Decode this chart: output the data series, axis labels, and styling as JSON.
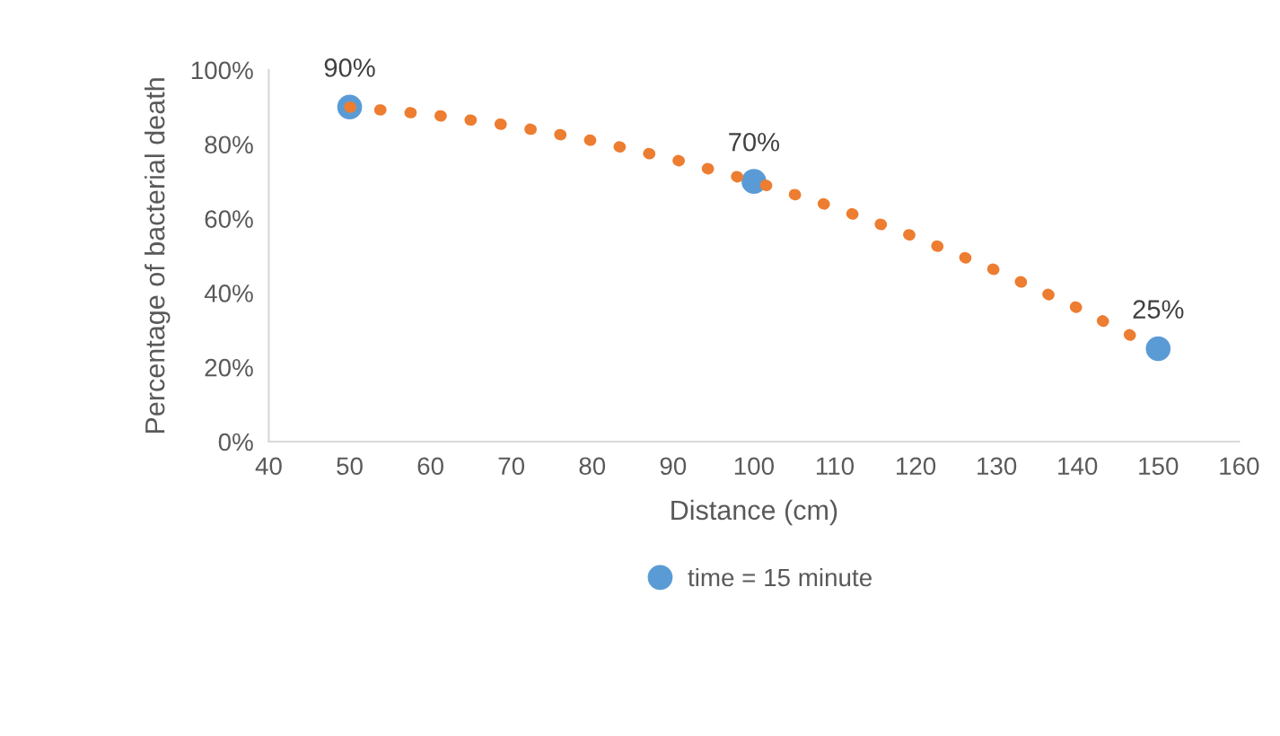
{
  "chart_data": {
    "type": "scatter",
    "xlabel": "Distance (cm)",
    "ylabel": "Percentage of bacterial death",
    "xlim": [
      40,
      160
    ],
    "xticks": [
      40,
      50,
      60,
      70,
      80,
      90,
      100,
      110,
      120,
      130,
      140,
      150,
      160
    ],
    "ylim": [
      0,
      100
    ],
    "yticks": [
      {
        "value": 0,
        "label": "0%"
      },
      {
        "value": 20,
        "label": "20%"
      },
      {
        "value": 40,
        "label": "40%"
      },
      {
        "value": 60,
        "label": "60%"
      },
      {
        "value": 80,
        "label": "80%"
      },
      {
        "value": 100,
        "label": "100%"
      }
    ],
    "grid": false,
    "legend": "bottom",
    "marker": "circle",
    "series": [
      {
        "type": "line",
        "color": "#ed7d31",
        "line_style": "dotted",
        "marker": "none",
        "x": [
          50,
          60,
          70,
          80,
          90,
          100,
          110,
          120,
          130,
          140,
          148
        ],
        "values": [
          90,
          88,
          85,
          81,
          76,
          70,
          63,
          55,
          46,
          36,
          27
        ]
      },
      {
        "name": "time = 15 minute",
        "color": "#5b9bd5",
        "x": [
          50,
          100,
          150
        ],
        "values": [
          90,
          70,
          25
        ],
        "value_labels": [
          "90%",
          "70%",
          "25%"
        ]
      }
    ]
  }
}
